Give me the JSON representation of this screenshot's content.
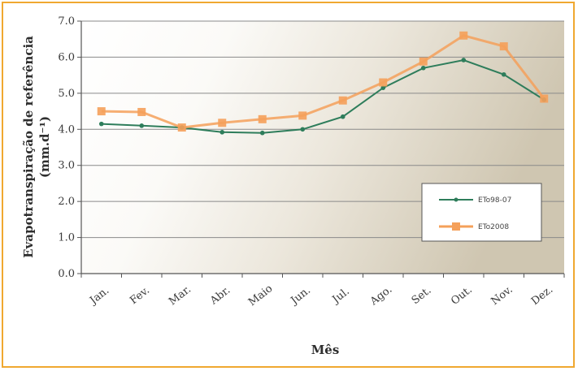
{
  "chart_data": {
    "type": "line",
    "categories": [
      "Jan.",
      "Fev.",
      "Mar.",
      "Abr.",
      "Maio",
      "Jun.",
      "Jul.",
      "Ago.",
      "Set.",
      "Out.",
      "Nov.",
      "Dez."
    ],
    "series": [
      {
        "name": "ETo98-07",
        "color": "#2e7d5b",
        "values": [
          4.15,
          4.1,
          4.05,
          3.92,
          3.9,
          4.0,
          4.35,
          5.15,
          5.7,
          5.92,
          5.52,
          4.82
        ]
      },
      {
        "name": "ETo2008",
        "color": "#f5a05a",
        "values": [
          4.5,
          4.48,
          4.05,
          4.18,
          4.28,
          4.38,
          4.8,
          5.3,
          5.88,
          6.6,
          6.3,
          4.85
        ]
      }
    ],
    "xlabel": "Mês",
    "ylabel_line1": "Evapotranspiração de referência",
    "ylabel_line2": "(mm.d⁻¹)",
    "ylim": [
      0,
      7
    ],
    "yticks": [
      "0.0",
      "1.0",
      "2.0",
      "3.0",
      "4.0",
      "5.0",
      "6.0",
      "7.0"
    ],
    "grid": true,
    "legend_position": "right-inside"
  }
}
